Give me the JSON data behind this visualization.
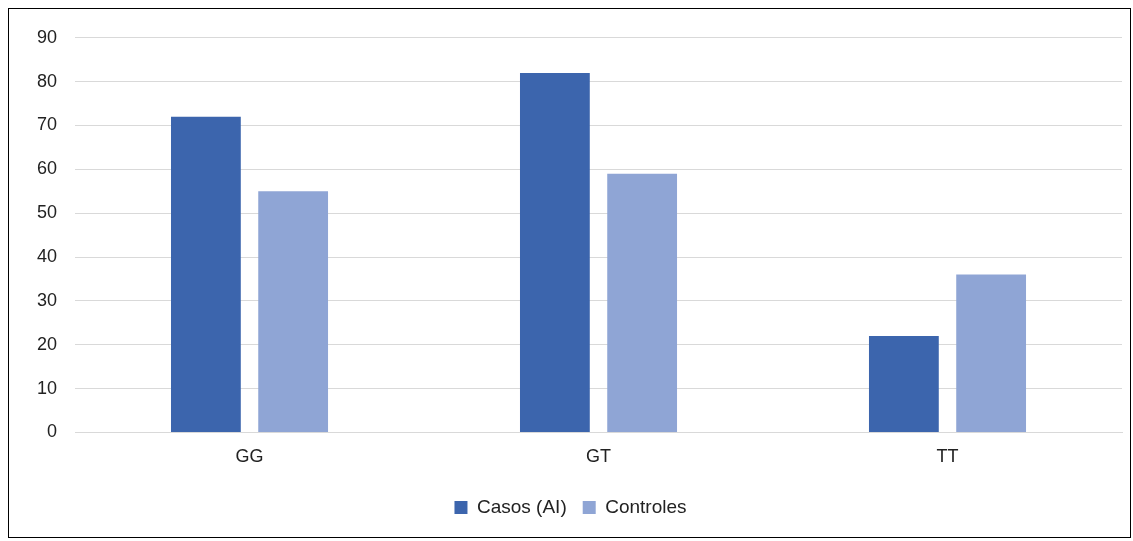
{
  "chart_data": {
    "type": "bar",
    "categories": [
      "GG",
      "GT",
      "TT"
    ],
    "series": [
      {
        "name": "Casos (AI)",
        "color": "#3c65ad",
        "values": [
          72,
          82,
          22
        ]
      },
      {
        "name": "Controles",
        "color": "#8fa5d5",
        "values": [
          55,
          59,
          36
        ]
      }
    ],
    "ylim": [
      0,
      90
    ],
    "yticks": [
      0,
      10,
      20,
      30,
      40,
      50,
      60,
      70,
      80,
      90
    ],
    "grid": "y",
    "legend": "bottom"
  }
}
